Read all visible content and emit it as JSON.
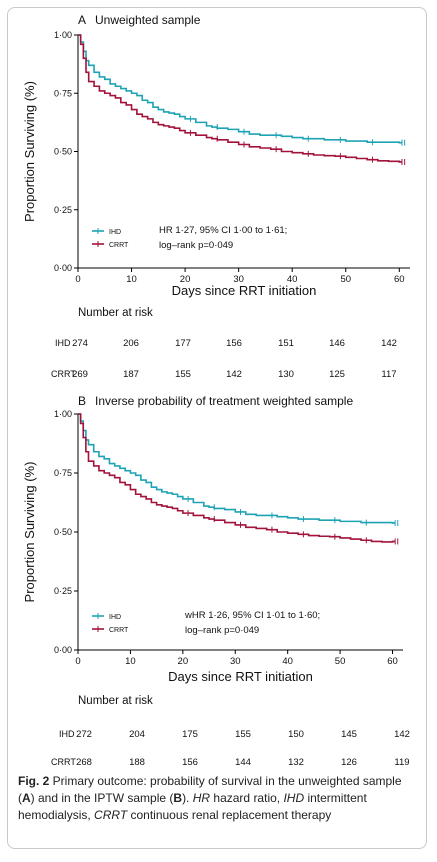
{
  "colors": {
    "ihd": "#1ea3b5",
    "crrt": "#a3123a",
    "axis": "#000000"
  },
  "caption": {
    "figure_label": "Fig. 2",
    "text_1": " Primary outcome: probability of survival in the unweighted sample (",
    "letter_a": "A",
    "text_2": ") and in the IPTW sample (",
    "letter_b": "B",
    "text_3": "). ",
    "hr_abbr": "HR",
    "text_4": " hazard ratio, ",
    "ihd_abbr": "IHD",
    "text_5": " intermittent hemodialysis, ",
    "crrt_abbr": "CRRT",
    "text_6": " continuous renal replacement therapy"
  },
  "chart_data": [
    {
      "type": "line",
      "panel_letter": "A",
      "title": "Unweighted sample",
      "xlabel": "Days since RRT initiation",
      "ylabel": "Proportion Surviving (%)",
      "xlim": [
        0,
        62
      ],
      "ylim": [
        0,
        1
      ],
      "xticks": [
        "0",
        "10",
        "20",
        "30",
        "40",
        "50",
        "60"
      ],
      "yticks": [
        "0·00",
        "0·25",
        "0·50",
        "0·75",
        "1·00"
      ],
      "legend_position": "bottom-left",
      "annotation_line1": "HR 1·27, 95% CI 1·00 to 1·61;",
      "annotation_line2": "log–rank p=0·049",
      "series": [
        {
          "name": "IHD",
          "x": [
            0,
            0.5,
            1,
            1.5,
            2,
            3,
            4,
            5,
            6,
            7,
            8,
            9,
            10,
            11,
            12,
            13,
            14,
            15,
            16,
            17,
            18,
            19,
            20,
            22,
            24,
            25,
            26,
            28,
            30,
            32,
            34,
            36,
            38,
            40,
            42,
            44,
            46,
            48,
            50,
            52,
            54,
            56,
            58,
            60
          ],
          "y": [
            1.0,
            0.97,
            0.93,
            0.89,
            0.87,
            0.84,
            0.82,
            0.81,
            0.79,
            0.78,
            0.77,
            0.76,
            0.75,
            0.74,
            0.72,
            0.71,
            0.69,
            0.68,
            0.67,
            0.665,
            0.66,
            0.65,
            0.64,
            0.625,
            0.61,
            0.605,
            0.6,
            0.595,
            0.585,
            0.575,
            0.57,
            0.57,
            0.565,
            0.56,
            0.555,
            0.555,
            0.55,
            0.55,
            0.545,
            0.545,
            0.54,
            0.54,
            0.54,
            0.538
          ]
        },
        {
          "name": "CRRT",
          "x": [
            0,
            0.5,
            1,
            1.5,
            2,
            3,
            4,
            5,
            6,
            7,
            8,
            9,
            10,
            11,
            12,
            13,
            14,
            15,
            16,
            17,
            18,
            19,
            20,
            22,
            24,
            25,
            26,
            28,
            30,
            32,
            34,
            36,
            38,
            40,
            42,
            44,
            46,
            48,
            50,
            52,
            54,
            56,
            58,
            60
          ],
          "y": [
            1.0,
            0.96,
            0.9,
            0.84,
            0.8,
            0.78,
            0.76,
            0.75,
            0.74,
            0.73,
            0.71,
            0.7,
            0.68,
            0.66,
            0.65,
            0.64,
            0.625,
            0.615,
            0.61,
            0.605,
            0.6,
            0.59,
            0.58,
            0.57,
            0.56,
            0.555,
            0.55,
            0.54,
            0.53,
            0.52,
            0.515,
            0.51,
            0.5,
            0.495,
            0.49,
            0.485,
            0.482,
            0.48,
            0.475,
            0.47,
            0.465,
            0.46,
            0.458,
            0.455
          ]
        }
      ],
      "risk_table": {
        "title": "Number at risk",
        "times": [
          0,
          10,
          20,
          30,
          40,
          50,
          60
        ],
        "rows": [
          {
            "label": "IHD",
            "values": [
              "274",
              "206",
              "177",
              "156",
              "151",
              "146",
              "142"
            ]
          },
          {
            "label": "CRRT",
            "values": [
              "269",
              "187",
              "155",
              "142",
              "130",
              "125",
              "117"
            ]
          }
        ]
      }
    },
    {
      "type": "line",
      "panel_letter": "B",
      "title": "Inverse probability of treatment weighted sample",
      "xlabel": "Days since RRT initiation",
      "ylabel": "Proportion Surviving (%)",
      "xlim": [
        0,
        62
      ],
      "ylim": [
        0,
        1
      ],
      "xticks": [
        "0",
        "10",
        "20",
        "30",
        "40",
        "50",
        "60"
      ],
      "yticks": [
        "0·00",
        "0·25",
        "0·50",
        "0·75",
        "1·00"
      ],
      "legend_position": "bottom-left",
      "annotation_line1": "wHR 1·26, 95% CI 1·01 to 1·60;",
      "annotation_line2": "log–rank p=0·049",
      "series": [
        {
          "name": "IHD",
          "x": [
            0,
            0.5,
            1,
            1.5,
            2,
            3,
            4,
            5,
            6,
            7,
            8,
            9,
            10,
            11,
            12,
            13,
            14,
            15,
            16,
            17,
            18,
            19,
            20,
            22,
            24,
            25,
            26,
            28,
            30,
            32,
            34,
            36,
            38,
            40,
            42,
            44,
            46,
            48,
            50,
            52,
            54,
            56,
            58,
            60
          ],
          "y": [
            1.0,
            0.97,
            0.93,
            0.89,
            0.87,
            0.84,
            0.82,
            0.81,
            0.79,
            0.78,
            0.77,
            0.76,
            0.75,
            0.74,
            0.72,
            0.71,
            0.69,
            0.68,
            0.67,
            0.665,
            0.66,
            0.65,
            0.64,
            0.625,
            0.61,
            0.605,
            0.6,
            0.595,
            0.585,
            0.575,
            0.57,
            0.57,
            0.565,
            0.56,
            0.555,
            0.555,
            0.55,
            0.55,
            0.545,
            0.545,
            0.54,
            0.54,
            0.54,
            0.538
          ]
        },
        {
          "name": "CRRT",
          "x": [
            0,
            0.5,
            1,
            1.5,
            2,
            3,
            4,
            5,
            6,
            7,
            8,
            9,
            10,
            11,
            12,
            13,
            14,
            15,
            16,
            17,
            18,
            19,
            20,
            22,
            24,
            25,
            26,
            28,
            30,
            32,
            34,
            36,
            38,
            40,
            42,
            44,
            46,
            48,
            50,
            52,
            54,
            56,
            58,
            60
          ],
          "y": [
            1.0,
            0.96,
            0.9,
            0.84,
            0.8,
            0.78,
            0.76,
            0.75,
            0.74,
            0.73,
            0.71,
            0.7,
            0.68,
            0.66,
            0.65,
            0.64,
            0.625,
            0.615,
            0.61,
            0.605,
            0.6,
            0.59,
            0.58,
            0.57,
            0.56,
            0.555,
            0.55,
            0.54,
            0.53,
            0.52,
            0.515,
            0.51,
            0.5,
            0.495,
            0.49,
            0.485,
            0.482,
            0.48,
            0.475,
            0.47,
            0.465,
            0.46,
            0.458,
            0.46
          ]
        }
      ],
      "risk_table": {
        "title": "Number at risk",
        "times": [
          0,
          10,
          20,
          30,
          40,
          50,
          60
        ],
        "rows": [
          {
            "label": "IHD",
            "values": [
              "272",
              "204",
              "175",
              "155",
              "150",
              "145",
              "142"
            ]
          },
          {
            "label": "CRRT",
            "values": [
              "268",
              "188",
              "156",
              "144",
              "132",
              "126",
              "119"
            ]
          }
        ]
      }
    }
  ]
}
